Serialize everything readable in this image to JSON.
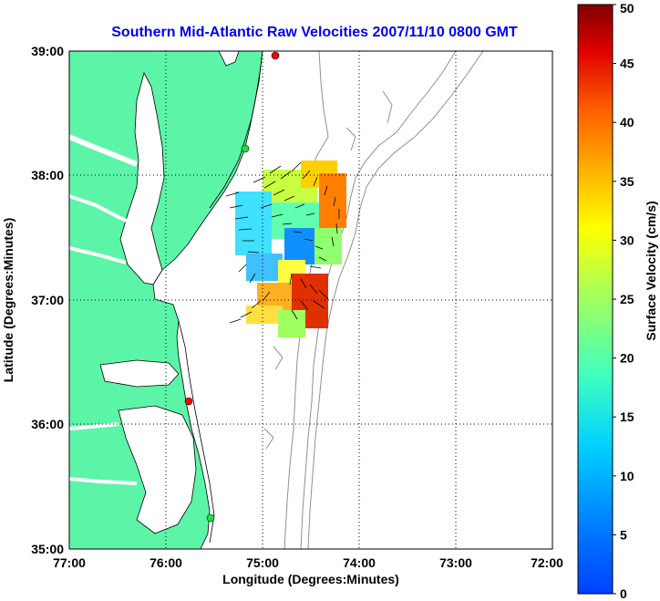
{
  "map": {
    "title": "Southern Mid-Atlantic Raw Velocities 2007/11/10 0800 GMT",
    "xlabel": "Longitude (Degrees:Minutes)",
    "ylabel": "Latitude (Degrees:Minutes)",
    "x_ticks": [
      "77:00",
      "76:00",
      "75:00",
      "74:00",
      "73:00",
      "72:00"
    ],
    "y_ticks": [
      "39:00",
      "38:00",
      "37:00",
      "36:00",
      "35:00"
    ],
    "lon_range": [
      -77,
      -72
    ],
    "lat_range": [
      35,
      39
    ],
    "grid": true,
    "land_color": "#5cf5a8",
    "colorbar": {
      "label": "Surface Velocity (cm/s)",
      "min": 0,
      "max": 50,
      "ticks": [
        "0",
        "5",
        "10",
        "15",
        "20",
        "25",
        "30",
        "35",
        "40",
        "45",
        "50"
      ],
      "colormap": "jet"
    },
    "stations": [
      {
        "lon": -74.85,
        "lat": 38.98,
        "status": "red"
      },
      {
        "lon": -75.15,
        "lat": 38.22,
        "status": "green"
      },
      {
        "lon": -75.55,
        "lat": 36.18,
        "status": "red"
      },
      {
        "lon": -75.45,
        "lat": 35.25,
        "status": "green"
      }
    ],
    "icons": {
      "station": "station-dot-icon",
      "vector": "velocity-arrow-icon"
    }
  }
}
